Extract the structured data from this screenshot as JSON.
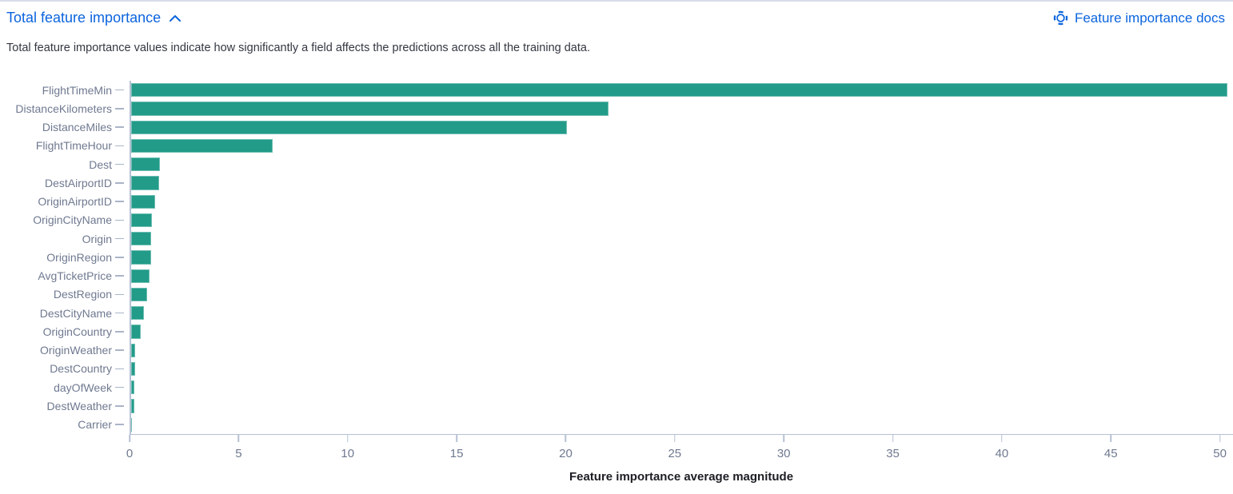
{
  "header": {
    "title": "Total feature importance",
    "collapse_icon": "chevron-up-icon",
    "docs_icon": "life-ring-icon",
    "docs_link_label": "Feature importance docs"
  },
  "description": "Total feature importance values indicate how significantly a field affects the predictions across all the training data.",
  "colors": {
    "link": "#0b64dd",
    "bar": "#229b89",
    "axis-line": "#b6c1d4",
    "axis-text": "#6f7990",
    "text": "#343741",
    "xlabel": "#1c1e24",
    "divider": "#d9ddea"
  },
  "chart_data": {
    "type": "bar",
    "orientation": "horizontal",
    "title": "",
    "categories": [
      "FlightTimeMin",
      "DistanceKilometers",
      "DistanceMiles",
      "FlightTimeHour",
      "Dest",
      "DestAirportID",
      "OriginAirportID",
      "OriginCityName",
      "Origin",
      "OriginRegion",
      "AvgTicketPrice",
      "DestRegion",
      "DestCityName",
      "OriginCountry",
      "OriginWeather",
      "DestCountry",
      "dayOfWeek",
      "DestWeather",
      "Carrier"
    ],
    "values": [
      50.3,
      21.9,
      20.0,
      6.5,
      1.35,
      1.3,
      1.1,
      0.97,
      0.94,
      0.93,
      0.85,
      0.74,
      0.6,
      0.45,
      0.2,
      0.19,
      0.18,
      0.16,
      0.05
    ],
    "xlabel": "Feature importance average magnitude",
    "ylabel": "",
    "x_ticks": [
      0,
      5,
      10,
      15,
      20,
      25,
      30,
      35,
      40,
      45,
      50
    ],
    "xlim": [
      0,
      50.6
    ],
    "grid": false,
    "legend": false,
    "sort": "descending"
  }
}
